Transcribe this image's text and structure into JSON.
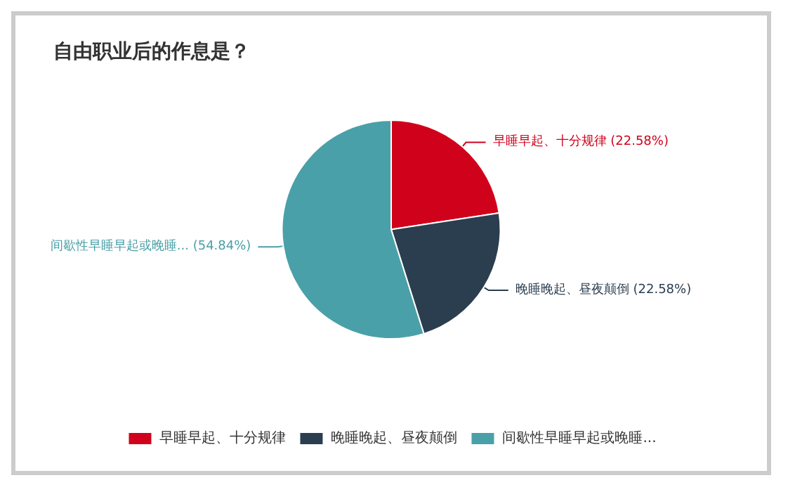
{
  "chart_data": {
    "type": "pie",
    "title": "自由职业后的作息是？",
    "categories": [
      "早睡早起、十分规律",
      "晚睡晚起、昼夜颠倒",
      "间歇性早睡早起或晚睡..."
    ],
    "values": [
      22.58,
      22.58,
      54.84
    ],
    "value_labels": [
      "(22.58%)",
      "(22.58%)",
      "(54.84%)"
    ],
    "colors": [
      "#d0021b",
      "#2b3e50",
      "#4aa0a8"
    ],
    "legend": "bottom"
  }
}
